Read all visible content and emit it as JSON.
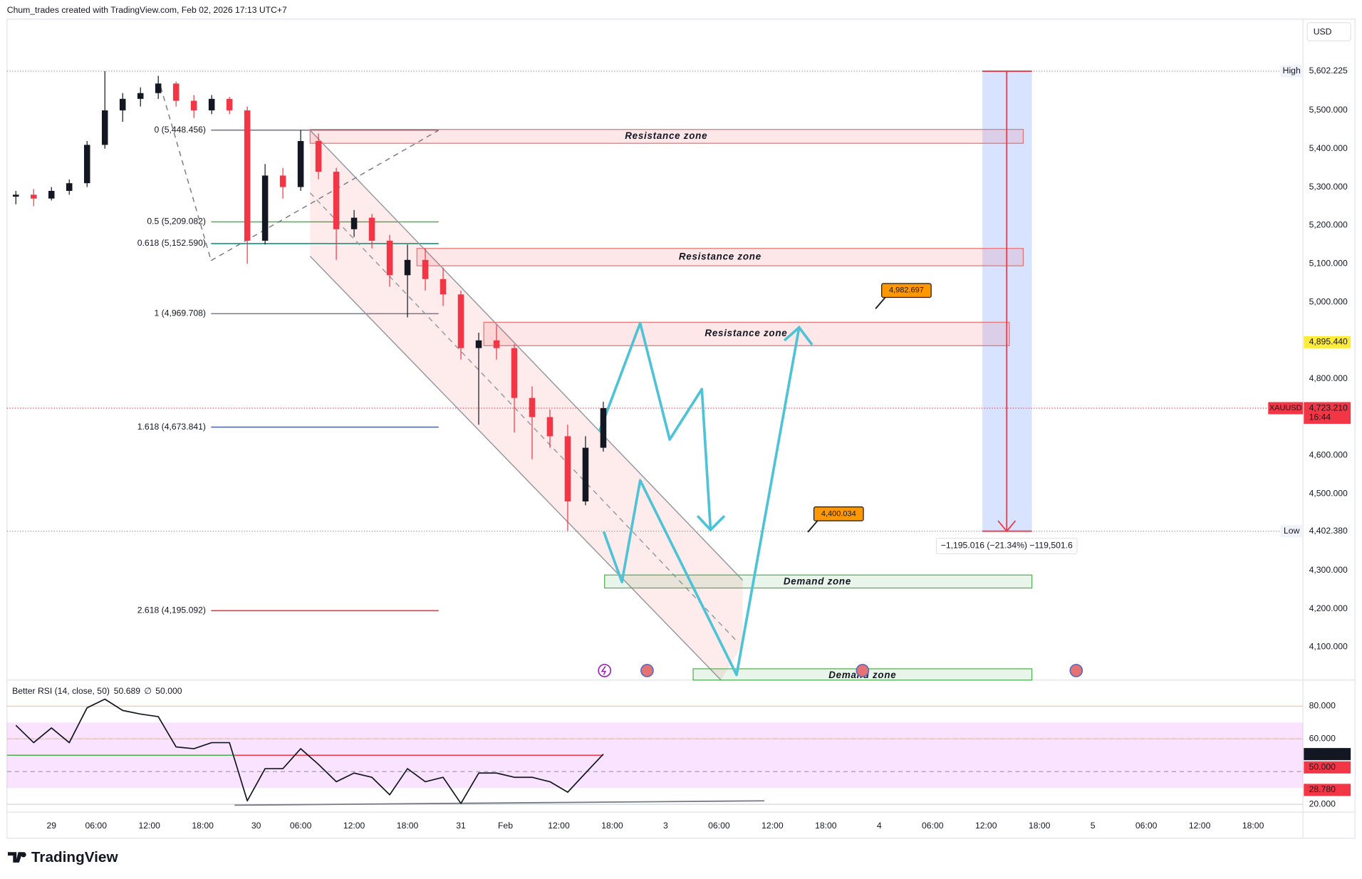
{
  "header": "Chum_trades created with TradingView.com, Feb 02, 2026 17:13 UTC+7",
  "footer": "TradingView",
  "chart_data": {
    "type": "candlestick",
    "symbol": "XAUUSD",
    "currency": "USD",
    "up_color": "#131722",
    "down_color": "#f23645",
    "x": [
      -4,
      -2,
      0,
      2,
      4,
      6,
      8,
      10,
      12,
      14,
      16,
      18,
      20,
      22,
      24,
      26,
      28,
      30,
      32,
      34,
      36,
      38,
      40,
      42,
      44,
      46,
      48,
      50,
      52,
      54,
      56,
      58,
      60,
      62
    ],
    "open": [
      5275,
      5280,
      5270,
      5290,
      5310,
      5410,
      5500,
      5530,
      5545,
      5570,
      5525,
      5500,
      5530,
      5500,
      5160,
      5330,
      5300,
      5420,
      5340,
      5190,
      5220,
      5160,
      5070,
      5110,
      5060,
      5020,
      4880,
      4900,
      4880,
      4750,
      4700,
      4650,
      4480,
      4620
    ],
    "high": [
      5290,
      5295,
      5300,
      5320,
      5420,
      5602.225,
      5545,
      5560,
      5590,
      5575,
      5540,
      5540,
      5535,
      5510,
      5360,
      5350,
      5448.456,
      5440,
      5350,
      5240,
      5230,
      5175,
      5150,
      5140,
      5090,
      5030,
      4920,
      4940,
      4890,
      4780,
      4720,
      4680,
      4650,
      4740
    ],
    "low": [
      5255,
      5250,
      5265,
      5280,
      5300,
      5400,
      5470,
      5510,
      5530,
      5510,
      5480,
      5490,
      5490,
      5100,
      5150,
      5270,
      5290,
      5320,
      5110,
      5170,
      5140,
      5040,
      4960,
      5030,
      4990,
      4850,
      4680,
      4850,
      4660,
      4590,
      4620,
      4402.38,
      4470,
      4610
    ],
    "close": [
      5280,
      5270,
      5290,
      5310,
      5410,
      5500,
      5530,
      5545,
      5570,
      5525,
      5500,
      5530,
      5500,
      5160,
      5330,
      5300,
      5420,
      5340,
      5190,
      5220,
      5160,
      5070,
      5110,
      5060,
      5020,
      4880,
      4900,
      4880,
      4750,
      4700,
      4650,
      4480,
      4620,
      4723.21
    ],
    "xlim": [
      -5,
      140.6
    ],
    "xticks": [
      {
        "value": 0,
        "label": "29"
      },
      {
        "value": 5,
        "label": "06:00"
      },
      {
        "value": 11,
        "label": "12:00"
      },
      {
        "value": 17,
        "label": "18:00"
      },
      {
        "value": 23,
        "label": "30"
      },
      {
        "value": 28,
        "label": "06:00"
      },
      {
        "value": 34,
        "label": "12:00"
      },
      {
        "value": 40,
        "label": "18:00"
      },
      {
        "value": 46,
        "label": "31"
      },
      {
        "value": 51,
        "label": "Feb"
      },
      {
        "value": 57,
        "label": "12:00"
      },
      {
        "value": 63,
        "label": "18:00"
      },
      {
        "value": 69,
        "label": "3"
      },
      {
        "value": 75,
        "label": "06:00"
      },
      {
        "value": 81,
        "label": "12:00"
      },
      {
        "value": 87,
        "label": "18:00"
      },
      {
        "value": 93,
        "label": "4"
      },
      {
        "value": 99,
        "label": "06:00"
      },
      {
        "value": 105,
        "label": "12:00"
      },
      {
        "value": 111,
        "label": "18:00"
      },
      {
        "value": 117,
        "label": "5"
      },
      {
        "value": 123,
        "label": "06:00"
      },
      {
        "value": 129,
        "label": "12:00"
      },
      {
        "value": 135,
        "label": "18:00"
      }
    ],
    "ylim": [
      4014,
      5738
    ],
    "yticks": [
      {
        "value": 5500,
        "label": "5,500.000"
      },
      {
        "value": 5400,
        "label": "5,400.000"
      },
      {
        "value": 5300,
        "label": "5,300.000"
      },
      {
        "value": 5200,
        "label": "5,200.000"
      },
      {
        "value": 5100,
        "label": "5,100.000"
      },
      {
        "value": 5000,
        "label": "5,000.000"
      },
      {
        "value": 4800,
        "label": "4,800.000"
      },
      {
        "value": 4600,
        "label": "4,600.000"
      },
      {
        "value": 4500,
        "label": "4,500.000"
      },
      {
        "value": 4300,
        "label": "4,300.000"
      },
      {
        "value": 4200,
        "label": "4,200.000"
      },
      {
        "value": 4100,
        "label": "4,100.000"
      }
    ],
    "high_marker": {
      "label": "High",
      "value": 5602.225,
      "value_label": "5,602.225"
    },
    "low_marker": {
      "label": "Low",
      "value": 4402.38,
      "value_label": "4,402.380"
    },
    "last_price": {
      "value": 4723.21,
      "value_label": "4,723.210",
      "countdown": "16:44",
      "color": "#f23645"
    },
    "price_line": {
      "value": 4895.44,
      "value_label": "4,895.440",
      "color": "#ffeb3b"
    },
    "fib": [
      {
        "value": 5448.456,
        "label": "0 (5,448.456)",
        "color": "#787b86"
      },
      {
        "value": 5209.082,
        "label": "0.5 (5,209.082)",
        "color": "#4caf50"
      },
      {
        "value": 5152.59,
        "label": "0.618 (5,152.590)",
        "color": "#089981"
      },
      {
        "value": 4969.708,
        "label": "1 (4,969.708)",
        "color": "#787b86"
      },
      {
        "value": 4673.841,
        "label": "1.618 (4,673.841)",
        "color": "#2962ff"
      },
      {
        "value": 4195.092,
        "label": "2.618 (4,195.092)",
        "color": "#f23645"
      }
    ],
    "zones": [
      "Resistance zone",
      "Resistance zone",
      "Resistance zone",
      "Demand zone",
      "Demand zone"
    ],
    "callouts": [
      {
        "value": 4982.697,
        "label": "4,982.697"
      },
      {
        "value": 4400.034,
        "label": "4,400.034"
      }
    ],
    "measure": "−1,195.016 (−21.34%) −119,501.6",
    "rsi": {
      "type": "line",
      "title": "Better RSI (14, close, 50)",
      "value_label": "50.689",
      "ma_symbol": "∅",
      "ma_label": "50.000",
      "ma_value": 50,
      "level_label": "28.780",
      "level_value": 28.78,
      "values": [
        68.3,
        57.7,
        66.7,
        57.7,
        79.0,
        84.3,
        77.4,
        75.2,
        73.6,
        55.1,
        54.0,
        57.7,
        57.7,
        22.1,
        41.8,
        41.8,
        54.0,
        44.4,
        33.8,
        39.1,
        36.5,
        25.8,
        41.8,
        33.8,
        36.5,
        20.5,
        39.1,
        39.1,
        36.5,
        36.5,
        33.8,
        27.4,
        39.1,
        50.689
      ],
      "ylim": [
        15.2,
        94.9
      ],
      "yticks": [
        {
          "value": 80,
          "label": "80.000"
        },
        {
          "value": 60,
          "label": "60.000"
        },
        {
          "value": 20,
          "label": "20.000"
        }
      ],
      "band": [
        30,
        70
      ],
      "dashed_levels": [
        60,
        40
      ]
    }
  }
}
